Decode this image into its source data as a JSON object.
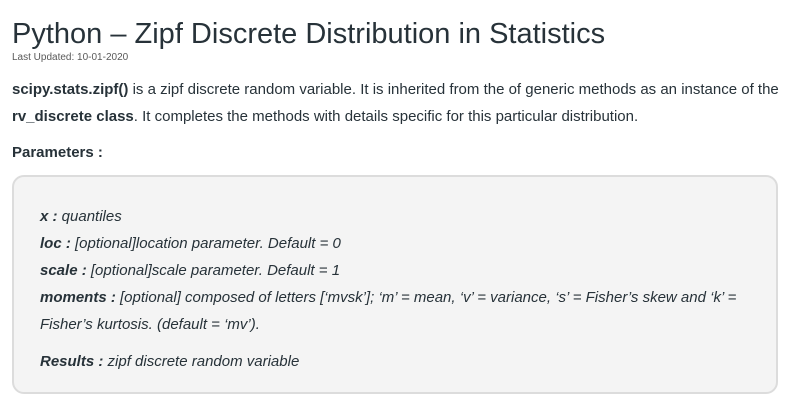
{
  "article": {
    "title": "Python – Zipf Discrete Distribution in Statistics",
    "last_updated": "Last Updated: 10-01-2020",
    "intro": {
      "code_name": "scipy.stats.zipf()",
      "text_part1": " is a zipf discrete random variable. It is inherited from the of generic methods as an instance of the ",
      "class_name": "rv_discrete class",
      "text_part2": ". It completes the methods with details specific for this particular distribution."
    },
    "parameters_heading": "Parameters :",
    "parameters": [
      {
        "name": "x :",
        "desc": " quantiles"
      },
      {
        "name": "loc :",
        "desc": " [optional]location parameter. Default = 0"
      },
      {
        "name": "scale :",
        "desc": " [optional]scale parameter. Default = 1"
      },
      {
        "name": "moments :",
        "desc": " [optional] composed of letters [‘mvsk’]; ‘m’ = mean, ‘v’ = variance, ‘s’ = Fisher’s skew and ‘k’ = Fisher’s kurtosis. (default = ‘mv’)."
      }
    ],
    "results": {
      "name": "Results :",
      "desc": " zipf discrete random variable"
    }
  }
}
